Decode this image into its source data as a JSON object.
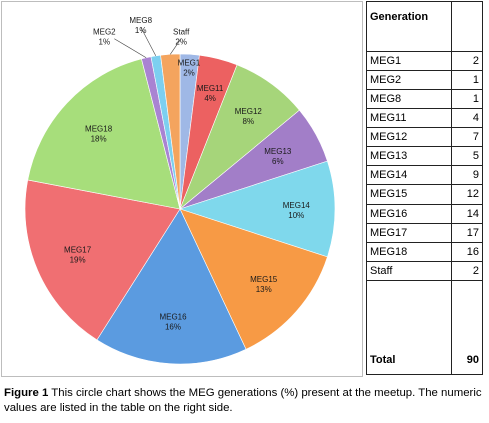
{
  "chart_data": {
    "type": "pie",
    "categories": [
      "MEG1",
      "MEG11",
      "MEG12",
      "MEG13",
      "MEG14",
      "MEG15",
      "MEG16",
      "MEG17",
      "MEG18",
      "MEG2",
      "MEG8",
      "Staff"
    ],
    "values": [
      2,
      4,
      8,
      6,
      10,
      13,
      16,
      19,
      18,
      1,
      1,
      2
    ],
    "value_labels": [
      "2%",
      "4%",
      "8%",
      "6%",
      "10%",
      "13%",
      "16%",
      "19%",
      "18%",
      "1%",
      "1%",
      "2%"
    ],
    "colors": [
      "#9fb8e6",
      "#ec6161",
      "#a6d57a",
      "#a27ec8",
      "#7fd8ec",
      "#f79a45",
      "#5b9be0",
      "#f06f72",
      "#a7de7b",
      "#a983d2",
      "#7ccff0",
      "#f4a45e"
    ],
    "title": "",
    "legend": "none"
  },
  "table": {
    "header": "Generation",
    "rows": [
      {
        "name": "MEG1",
        "count": "2"
      },
      {
        "name": "MEG2",
        "count": "1"
      },
      {
        "name": "MEG8",
        "count": "1"
      },
      {
        "name": "MEG11",
        "count": "4"
      },
      {
        "name": "MEG12",
        "count": "7"
      },
      {
        "name": "MEG13",
        "count": "5"
      },
      {
        "name": "MEG14",
        "count": "9"
      },
      {
        "name": "MEG15",
        "count": "12"
      },
      {
        "name": "MEG16",
        "count": "14"
      },
      {
        "name": "MEG17",
        "count": "17"
      },
      {
        "name": "MEG18",
        "count": "16"
      },
      {
        "name": "Staff",
        "count": "2"
      }
    ],
    "total_label": "Total",
    "total_value": "90"
  },
  "caption": {
    "label": "Figure 1",
    "text": " This circle chart shows the MEG generations (%) present at the meetup. The numeric values are listed in the table on the right side."
  }
}
